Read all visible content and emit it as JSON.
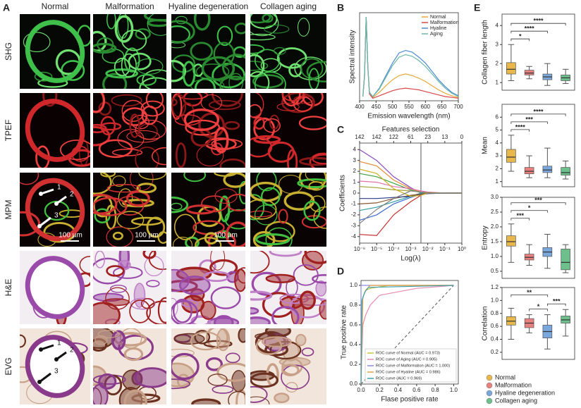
{
  "panel_labels": [
    "A",
    "B",
    "C",
    "D",
    "E"
  ],
  "panel_A": {
    "columns": [
      "Normal",
      "Malformation",
      "Hyaline degeneration",
      "Collagen aging"
    ],
    "rows": [
      "SHG",
      "TPEF",
      "MPM",
      "H&E",
      "EVG"
    ],
    "scale_bar": "100 µm",
    "arrow_labels": [
      "1",
      "2",
      "3"
    ]
  },
  "legend_E": {
    "items": [
      {
        "name": "Normal",
        "color": "#e8b84a"
      },
      {
        "name": "Malformation",
        "color": "#e88080"
      },
      {
        "name": "Hyaline degeneration",
        "color": "#7aa7dc"
      },
      {
        "name": "Collagen aging",
        "color": "#6dbf8c"
      }
    ]
  },
  "chart_data": [
    {
      "type": "line",
      "xlabel": "Emission wavelength (nm)",
      "ylabel": "Spectral intensity",
      "x": [
        410,
        415,
        420,
        425,
        430,
        440,
        460,
        480,
        500,
        520,
        540,
        560,
        580,
        600,
        620,
        640,
        660,
        680,
        700
      ],
      "xlim": [
        400,
        700
      ],
      "xticks": [
        400,
        450,
        500,
        550,
        600,
        650,
        700
      ],
      "ylim": [
        0,
        1.05
      ],
      "legend": "upper right",
      "series": [
        {
          "name": "Normal",
          "color": "#e8a838",
          "values": [
            0.05,
            0.3,
            1.0,
            0.4,
            0.1,
            0.04,
            0.1,
            0.18,
            0.25,
            0.3,
            0.32,
            0.3,
            0.27,
            0.23,
            0.18,
            0.13,
            0.09,
            0.06,
            0.04
          ]
        },
        {
          "name": "Malformation",
          "color": "#d84848",
          "values": [
            0.05,
            0.3,
            1.0,
            0.4,
            0.08,
            0.03,
            0.06,
            0.09,
            0.12,
            0.14,
            0.15,
            0.14,
            0.13,
            0.11,
            0.09,
            0.07,
            0.05,
            0.04,
            0.03
          ]
        },
        {
          "name": "Hyaline",
          "color": "#4a8ad0",
          "values": [
            0.05,
            0.3,
            1.0,
            0.4,
            0.1,
            0.05,
            0.15,
            0.3,
            0.45,
            0.57,
            0.6,
            0.58,
            0.52,
            0.45,
            0.35,
            0.25,
            0.17,
            0.1,
            0.06
          ]
        },
        {
          "name": "Aging",
          "color": "#6ab8a8",
          "values": [
            0.05,
            0.3,
            1.0,
            0.4,
            0.1,
            0.05,
            0.14,
            0.28,
            0.42,
            0.52,
            0.55,
            0.53,
            0.48,
            0.41,
            0.32,
            0.23,
            0.15,
            0.09,
            0.05
          ]
        }
      ]
    },
    {
      "type": "line",
      "x2label": "Features selection",
      "xlabel": "Log(λ)",
      "ylabel": "Coefficients",
      "x": [
        -6,
        -5,
        -4,
        -3,
        -2.4,
        -2,
        -1,
        0
      ],
      "xlim": [
        -6,
        0
      ],
      "xticks": [
        {
          "value": -6,
          "label": "10⁻⁶"
        },
        {
          "value": -5,
          "label": "10⁻⁵"
        },
        {
          "value": -4,
          "label": "10⁻⁴"
        },
        {
          "value": -3,
          "label": "10⁻³"
        },
        {
          "value": -2,
          "label": "10⁻²"
        },
        {
          "value": -1,
          "label": "10⁻¹"
        },
        {
          "value": 0,
          "label": "10⁰"
        }
      ],
      "x2ticks": [
        {
          "value": -6,
          "label": "142"
        },
        {
          "value": -5,
          "label": "142"
        },
        {
          "value": -4,
          "label": "122"
        },
        {
          "value": -3,
          "label": "61"
        },
        {
          "value": -2,
          "label": "23"
        },
        {
          "value": -1,
          "label": "13"
        },
        {
          "value": 0,
          "label": "0"
        }
      ],
      "ylim": [
        -4.6,
        4.6
      ],
      "yticks": [
        -4,
        -3,
        -2,
        -1,
        0,
        1,
        2,
        3,
        4
      ],
      "vline": -2.4,
      "series": [
        {
          "color": "#8a4ac0",
          "values": [
            4.0,
            3.0,
            1.5,
            0.5,
            0,
            0,
            0,
            0
          ]
        },
        {
          "color": "#c83030",
          "values": [
            -3.8,
            -3.9,
            -2,
            -0.8,
            -0.2,
            0,
            0,
            0
          ]
        },
        {
          "color": "#e88a30",
          "values": [
            2.9,
            2.5,
            1.2,
            0.4,
            0.1,
            0,
            0,
            0
          ]
        },
        {
          "color": "#3a6ad0",
          "values": [
            -2.5,
            -2,
            -1,
            -0.4,
            -0.1,
            0,
            0,
            0
          ]
        },
        {
          "color": "#40a040",
          "values": [
            1.8,
            1.5,
            0.9,
            0.3,
            0.05,
            0,
            0,
            0
          ]
        },
        {
          "color": "#30a0a0",
          "values": [
            -1.6,
            -1.3,
            -0.8,
            -0.3,
            0,
            0,
            0,
            0
          ]
        },
        {
          "color": "#e070b0",
          "values": [
            1.1,
            1,
            0.6,
            0.4,
            0.2,
            0.1,
            0,
            0
          ]
        },
        {
          "color": "#8a5a30",
          "values": [
            -1,
            -0.9,
            -0.5,
            -0.2,
            -0.1,
            0,
            0,
            0
          ]
        },
        {
          "color": "#a0a030",
          "values": [
            0.6,
            0.5,
            0.3,
            0.2,
            0.1,
            0.05,
            0,
            0
          ]
        },
        {
          "color": "#2a3a8a",
          "values": [
            -0.5,
            -0.5,
            -0.4,
            -0.3,
            -0.15,
            -0.05,
            0,
            0
          ]
        },
        {
          "color": "#d0b020",
          "values": [
            2.2,
            1.8,
            0.4,
            -0.3,
            -0.2,
            0,
            0,
            0
          ]
        },
        {
          "color": "#808080",
          "values": [
            -2.8,
            -1.5,
            -0.5,
            0.2,
            0.1,
            0,
            0,
            0
          ]
        }
      ]
    },
    {
      "type": "line",
      "xlabel": "Flase positive rate",
      "ylabel": "True positive rate",
      "diagonal": true,
      "legend": "lower right",
      "xlim": [
        0,
        1.05
      ],
      "ylim": [
        0,
        1.05
      ],
      "xticks": [
        {
          "value": 0,
          "label": "0.0"
        },
        0.2,
        0.4,
        0.6,
        0.8,
        {
          "value": 1,
          "label": "1.0"
        }
      ],
      "yticks": [
        {
          "value": 0,
          "label": "0.0"
        },
        0.2,
        0.4,
        0.6,
        0.8,
        {
          "value": 1,
          "label": "1.0"
        }
      ],
      "series": [
        {
          "name": "ROC curve of Normal (AUC = 0.973)",
          "color": "#c8c83c",
          "x": [
            0,
            0,
            0.03,
            0.05,
            0.1,
            0.3,
            1
          ],
          "values": [
            0,
            0.8,
            0.9,
            0.95,
            0.97,
            1,
            1
          ]
        },
        {
          "name": "ROC curve of Aging (AUC = 0.905)",
          "color": "#e88ab0",
          "x": [
            0,
            0.02,
            0.05,
            0.1,
            0.2,
            0.6,
            1
          ],
          "values": [
            0,
            0.6,
            0.7,
            0.8,
            0.9,
            0.97,
            1
          ]
        },
        {
          "name": "ROC curve of Malformation (AUC = 1.000)",
          "color": "#8a8ae0",
          "x": [
            0,
            0,
            1
          ],
          "values": [
            0,
            1,
            1
          ]
        },
        {
          "name": "ROC curve of Hyaline (AUC = 0.986)",
          "color": "#e8a040",
          "x": [
            0,
            0.02,
            0.05,
            0.1,
            1
          ],
          "values": [
            0,
            0.88,
            0.95,
            1,
            1
          ]
        },
        {
          "name": "ROC curve (AUC = 0.969)",
          "color": "#3aa0b0",
          "x": [
            0,
            0.01,
            0.04,
            0.08,
            1
          ],
          "values": [
            0,
            0.85,
            0.93,
            0.98,
            1
          ]
        }
      ]
    },
    {
      "type": "box",
      "ylabel": "Collagen fiber length",
      "ylim": [
        0.6,
        4.6
      ],
      "yticks": [
        1,
        2,
        3,
        4
      ],
      "boxes": [
        {
          "min": 1.1,
          "q1": 1.45,
          "median": 1.7,
          "q3": 2.05,
          "max": 3.0
        },
        {
          "min": 1.2,
          "q1": 1.4,
          "median": 1.5,
          "q3": 1.65,
          "max": 1.85
        },
        {
          "min": 0.85,
          "q1": 1.15,
          "median": 1.3,
          "q3": 1.45,
          "max": 2.0
        },
        {
          "min": 0.95,
          "q1": 1.1,
          "median": 1.25,
          "q3": 1.4,
          "max": 1.7
        }
      ],
      "brackets": [
        {
          "groups": [
            "Normal",
            "Malformation"
          ],
          "label": "*"
        },
        {
          "groups": [
            "Normal",
            "Hyaline degeneration"
          ],
          "label": "****"
        },
        {
          "groups": [
            "Normal",
            "Collagen aging"
          ],
          "label": "****"
        }
      ]
    },
    {
      "type": "box",
      "ylabel": "Mean",
      "ylim": [
        0.6,
        7.0
      ],
      "yticks": [
        1,
        2,
        3,
        4,
        5,
        6
      ],
      "boxes": [
        {
          "min": 1.8,
          "q1": 2.5,
          "median": 2.9,
          "q3": 3.5,
          "max": 4.6
        },
        {
          "min": 1.3,
          "q1": 1.6,
          "median": 1.8,
          "q3": 2.1,
          "max": 3.0
        },
        {
          "min": 1.3,
          "q1": 1.7,
          "median": 1.9,
          "q3": 2.2,
          "max": 3.6
        },
        {
          "min": 1.2,
          "q1": 1.5,
          "median": 1.7,
          "q3": 2.1,
          "max": 2.6
        }
      ],
      "brackets": [
        {
          "groups": [
            "Normal",
            "Malformation"
          ],
          "label": "****"
        },
        {
          "groups": [
            "Normal",
            "Hyaline degeneration"
          ],
          "label": "***"
        },
        {
          "groups": [
            "Normal",
            "Collagen aging"
          ],
          "label": "****"
        }
      ]
    },
    {
      "type": "box",
      "ylabel": "Entropy",
      "ylim": [
        0.26,
        3.0
      ],
      "yticks": [
        0.5,
        {
          "value": 1,
          "label": "1.0"
        },
        1.5,
        {
          "value": 2,
          "label": "2.0"
        },
        2.5,
        {
          "value": 3,
          "label": "3.0"
        }
      ],
      "boxes": [
        {
          "min": 0.8,
          "q1": 1.35,
          "median": 1.5,
          "q3": 1.7,
          "max": 2.1
        },
        {
          "min": 0.7,
          "q1": 0.88,
          "median": 0.97,
          "q3": 1.08,
          "max": 1.4
        },
        {
          "min": 0.6,
          "q1": 1.0,
          "median": 1.15,
          "q3": 1.3,
          "max": 1.75
        },
        {
          "min": 0.45,
          "q1": 0.55,
          "median": 0.8,
          "q3": 1.25,
          "max": 1.4
        }
      ],
      "brackets": [
        {
          "groups": [
            "Normal",
            "Malformation"
          ],
          "label": "***"
        },
        {
          "groups": [
            "Normal",
            "Hyaline degeneration"
          ],
          "label": "*"
        },
        {
          "groups": [
            "Normal",
            "Collagen aging"
          ],
          "label": "***"
        }
      ]
    },
    {
      "type": "box",
      "ylabel": "Correlation",
      "ylim": [
        0.09,
        1.2
      ],
      "yticks": [
        0.2,
        0.4,
        0.6,
        0.8,
        {
          "value": 1,
          "label": "1.0"
        },
        1.2
      ],
      "boxes": [
        {
          "min": 0.4,
          "q1": 0.62,
          "median": 0.68,
          "q3": 0.75,
          "max": 0.88
        },
        {
          "min": 0.5,
          "q1": 0.58,
          "median": 0.65,
          "q3": 0.72,
          "max": 0.78
        },
        {
          "min": 0.25,
          "q1": 0.42,
          "median": 0.52,
          "q3": 0.62,
          "max": 0.78
        },
        {
          "min": 0.45,
          "q1": 0.65,
          "median": 0.7,
          "q3": 0.76,
          "max": 0.86
        }
      ],
      "brackets": [
        {
          "groups": [
            "Malformation",
            "Hyaline degeneration"
          ],
          "label": "*"
        },
        {
          "groups": [
            "Hyaline degeneration",
            "Collagen aging"
          ],
          "label": "***"
        },
        {
          "groups": [
            "Normal",
            "Hyaline degeneration"
          ],
          "label": "**"
        }
      ]
    }
  ]
}
